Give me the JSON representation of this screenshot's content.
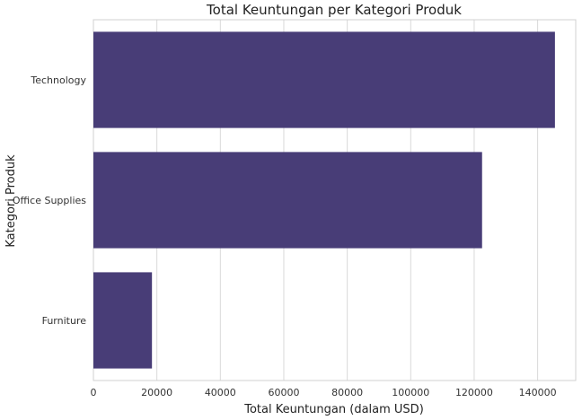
{
  "chart_data": {
    "type": "bar",
    "orientation": "horizontal",
    "title": "Total Keuntungan per Kategori Produk",
    "xlabel": "Total Keuntungan (dalam USD)",
    "ylabel": "Kategori Produk",
    "categories": [
      "Technology",
      "Office Supplies",
      "Furniture"
    ],
    "values": [
      145455,
      122491,
      18451
    ],
    "xlim": [
      0,
      152000
    ],
    "xticks": [
      0,
      20000,
      40000,
      60000,
      80000,
      100000,
      120000,
      140000
    ],
    "grid": true,
    "bar_color": "#483d77"
  }
}
